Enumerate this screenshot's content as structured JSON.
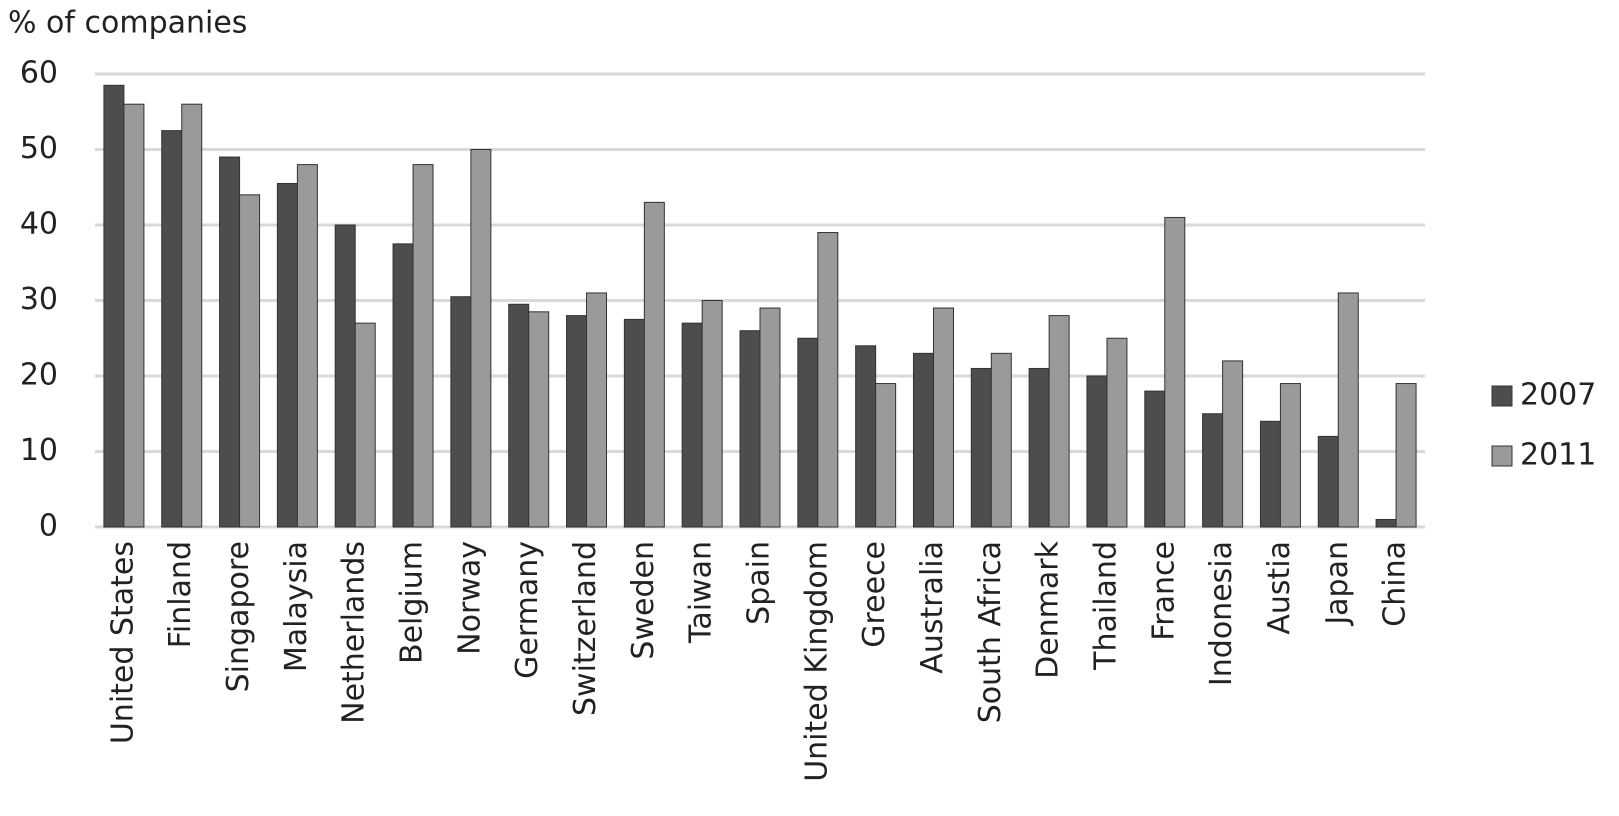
{
  "chart_data": {
    "type": "bar",
    "y_label": "% of companies",
    "categories": [
      "United States",
      "Finland",
      "Singapore",
      "Malaysia",
      "Netherlands",
      "Belgium",
      "Norway",
      "Germany",
      "Switzerland",
      "Sweden",
      "Taiwan",
      "Spain",
      "United Kingdom",
      "Greece",
      "Australia",
      "South Africa",
      "Denmark",
      "Thailand",
      "France",
      "Indonesia",
      "Austia",
      "Japan",
      "China"
    ],
    "series": [
      {
        "name": "2007",
        "color": "#4d4d4d",
        "values": [
          58.5,
          52.5,
          49,
          45.5,
          40,
          37.5,
          30.5,
          29.5,
          28,
          27.5,
          27,
          26,
          25,
          24,
          23,
          21,
          21,
          20,
          18,
          15,
          14,
          12,
          1
        ]
      },
      {
        "name": "2011",
        "color": "#9a9a9a",
        "values": [
          56,
          56,
          44,
          48,
          27,
          48,
          50,
          28.5,
          31,
          43,
          30,
          29,
          39,
          19,
          29,
          23,
          28,
          25,
          41,
          22,
          19,
          31,
          19
        ]
      }
    ],
    "ylim": [
      0,
      60
    ],
    "yticks": [
      0,
      10,
      20,
      30,
      40,
      50,
      60
    ],
    "grid": true,
    "legend": "right"
  }
}
